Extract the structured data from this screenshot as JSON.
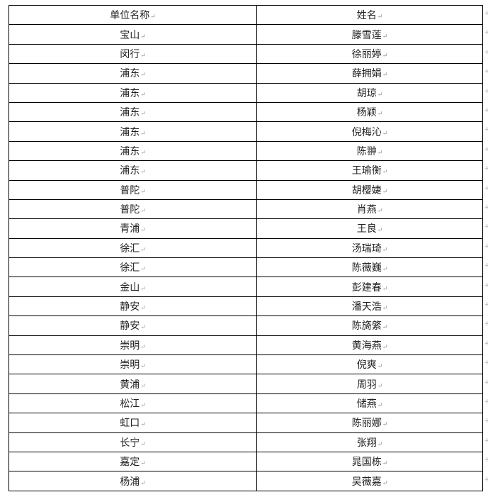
{
  "table": {
    "headers": [
      "单位名称",
      "姓名"
    ],
    "rows": [
      [
        "宝山",
        "滕雪莲"
      ],
      [
        "闵行",
        "徐丽婷"
      ],
      [
        "浦东",
        "薛拥娟"
      ],
      [
        "浦东",
        "胡琼"
      ],
      [
        "浦东",
        "杨颖"
      ],
      [
        "浦东",
        "倪梅沁"
      ],
      [
        "浦东",
        "陈翀"
      ],
      [
        "浦东",
        "王瑜衡"
      ],
      [
        "普陀",
        "胡樱婕"
      ],
      [
        "普陀",
        "肖燕"
      ],
      [
        "青浦",
        "王良"
      ],
      [
        "徐汇",
        "汤瑞琦"
      ],
      [
        "徐汇",
        "陈薇巍"
      ],
      [
        "金山",
        "彭建春"
      ],
      [
        "静安",
        "潘天浩"
      ],
      [
        "静安",
        "陈旖綮"
      ],
      [
        "崇明",
        "黄海燕"
      ],
      [
        "崇明",
        "倪爽"
      ],
      [
        "黄浦",
        "周羽"
      ],
      [
        "松江",
        "储燕"
      ],
      [
        "虹口",
        "陈丽娜"
      ],
      [
        "长宁",
        "张翔"
      ],
      [
        "嘉定",
        "晁国栋"
      ],
      [
        "杨浦",
        "吴薇嘉"
      ]
    ]
  },
  "paragraph_mark": "↵"
}
